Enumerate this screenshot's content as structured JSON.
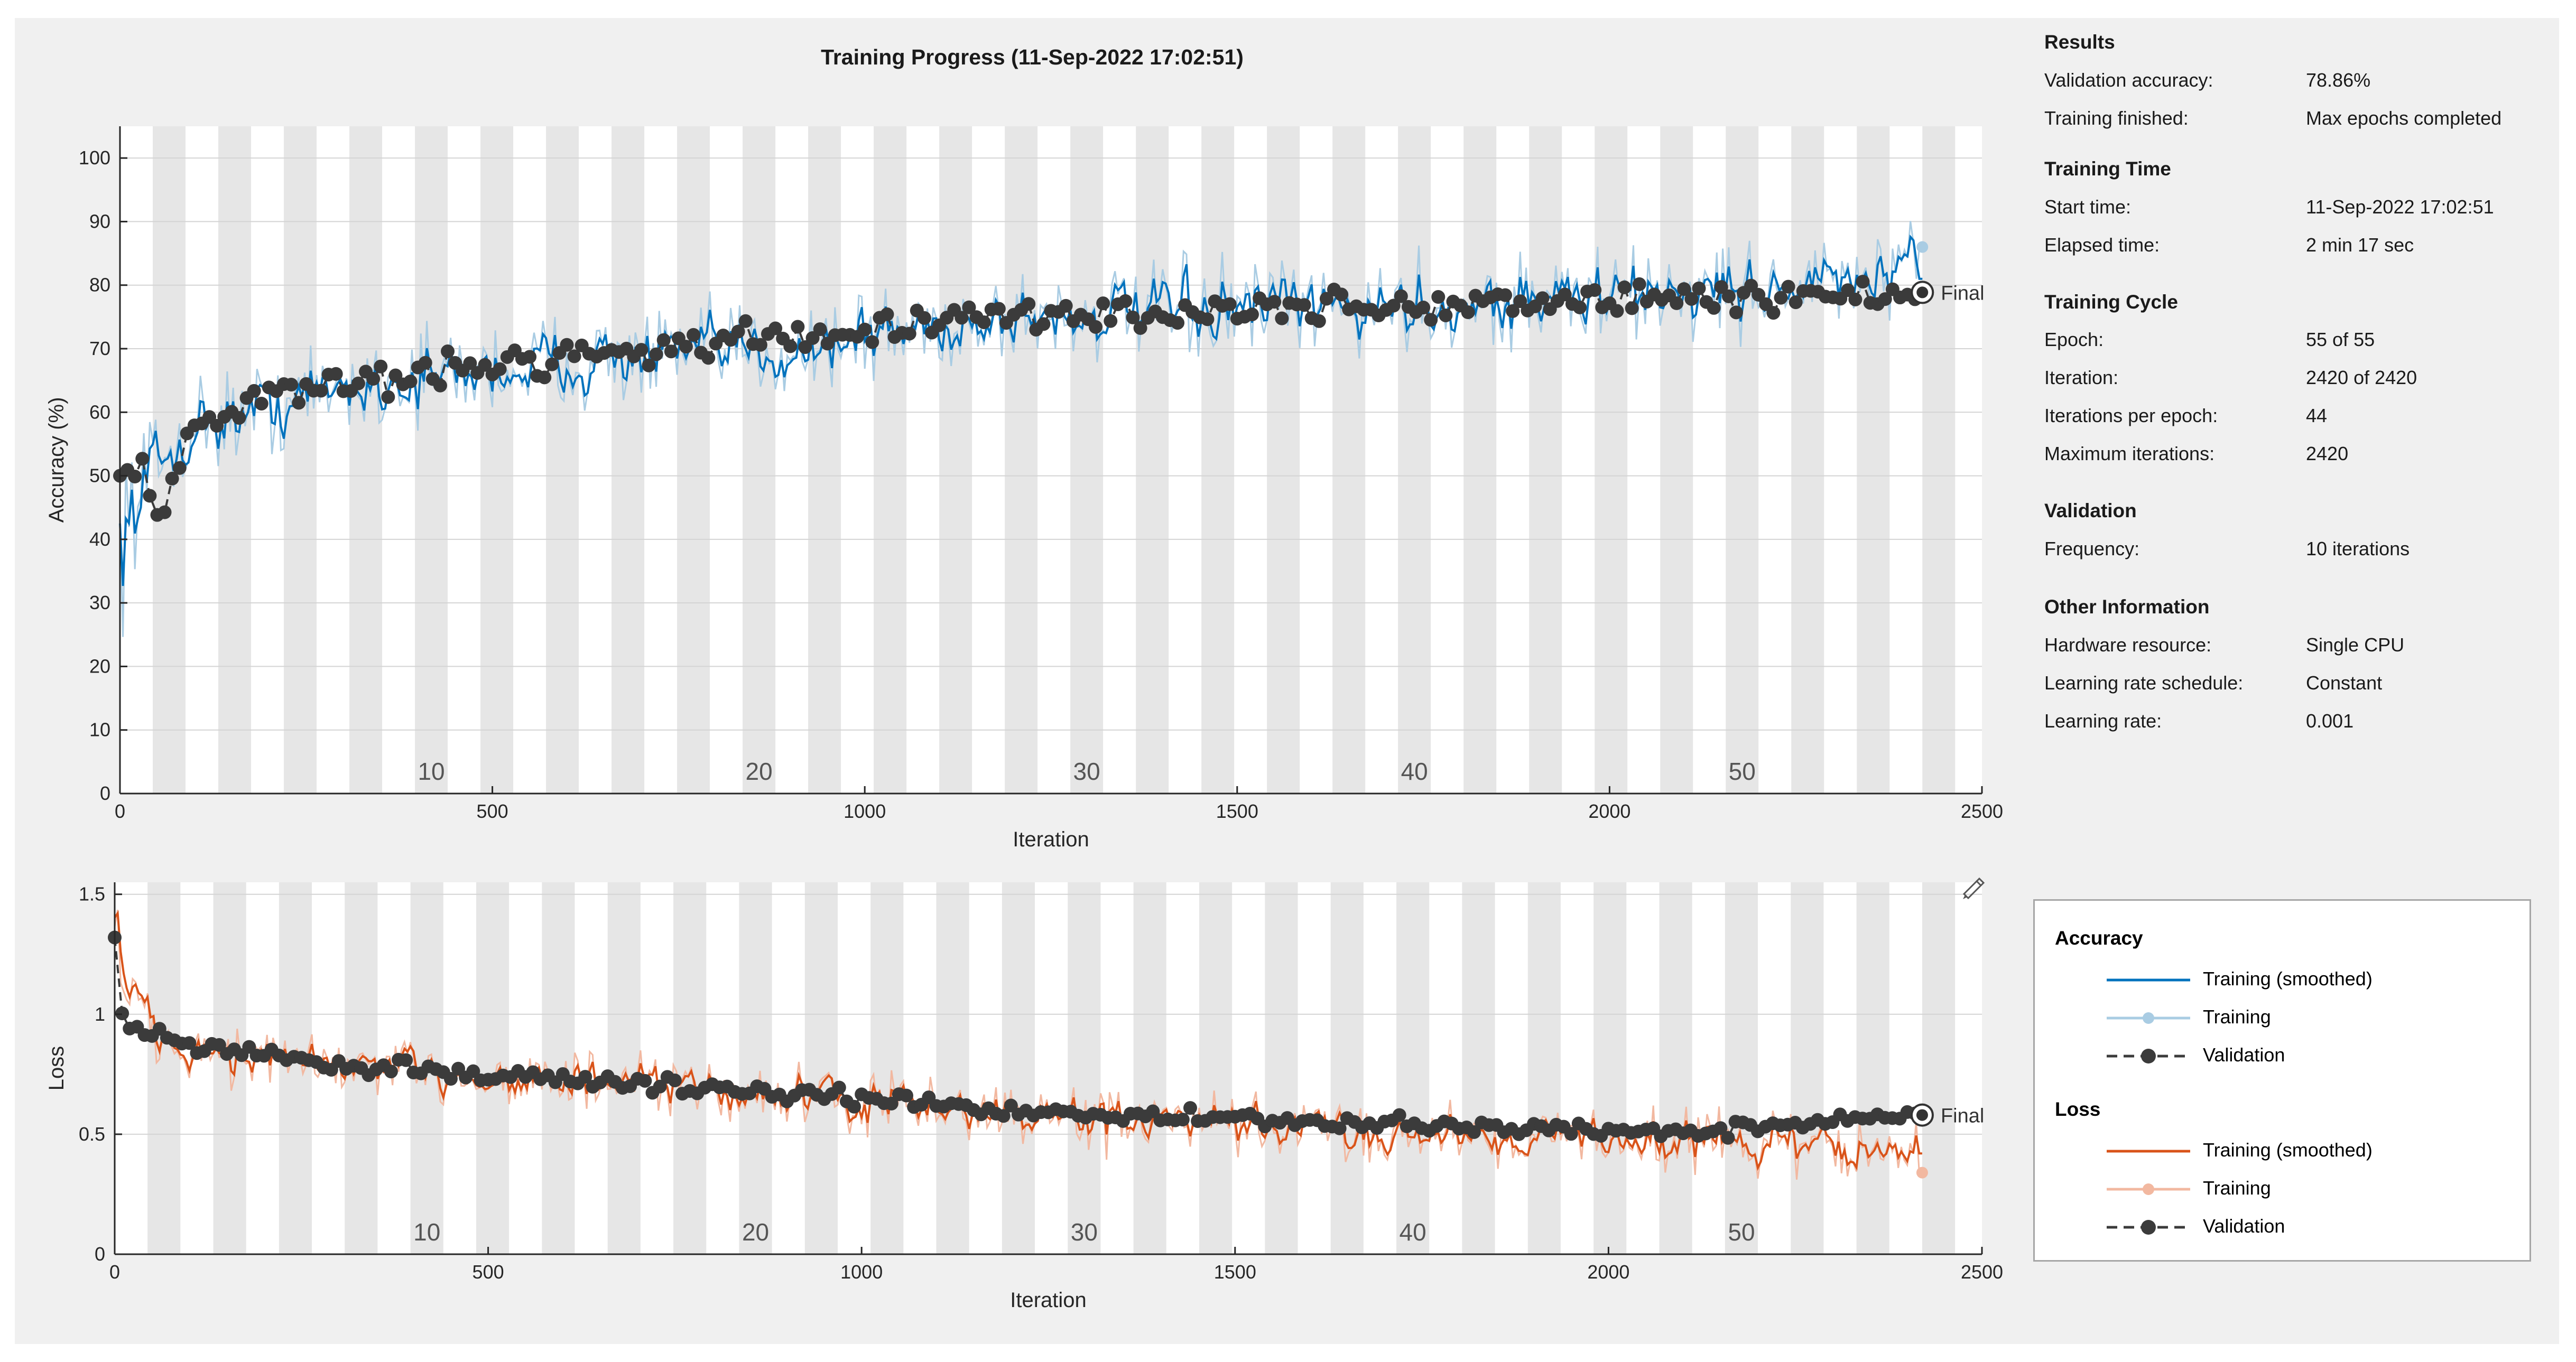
{
  "title": "Training Progress (11-Sep-2022 17:02:51)",
  "colors": {
    "acc_smoothed": "#0072bd",
    "acc_training": "#a9cce3",
    "loss_smoothed": "#d95319",
    "loss_training": "#f2b8a0",
    "validation": "#3b3b3b",
    "epoch_band": "#e6e6e6"
  },
  "chart_data": [
    {
      "type": "line",
      "name": "accuracy",
      "xlabel": "Iteration",
      "ylabel": "Accuracy (%)",
      "xlim": [
        0,
        2500
      ],
      "ylim": [
        0,
        105
      ],
      "xticks": [
        0,
        500,
        1000,
        1500,
        2000,
        2500
      ],
      "yticks": [
        0,
        10,
        20,
        30,
        40,
        50,
        60,
        70,
        80,
        90,
        100
      ],
      "epoch_labels": [
        "10",
        "20",
        "30",
        "40",
        "50"
      ],
      "epoch_label_iterations": [
        418,
        858,
        1298,
        1738,
        2178
      ],
      "iterations_per_epoch": 44,
      "final_label": "Final",
      "final_value": 78.86,
      "series": [
        {
          "name": "Training (smoothed)",
          "anchors_x": [
            0,
            20,
            100,
            300,
            600,
            900,
            1000,
            1200,
            1500,
            1800,
            2100,
            2420
          ],
          "anchors_y": [
            40,
            47,
            58,
            64,
            68,
            70,
            72,
            75,
            76,
            77,
            79,
            81
          ]
        },
        {
          "name": "Training",
          "anchors_x": [
            0,
            20,
            100,
            300,
            600,
            900,
            1000,
            1200,
            1500,
            1800,
            2100,
            2420
          ],
          "anchors_y": [
            40,
            47,
            58,
            64,
            68,
            70,
            72,
            75,
            76,
            77,
            79,
            86
          ]
        },
        {
          "name": "Validation",
          "anchors_x": [
            0,
            10,
            30,
            50,
            100,
            200,
            400,
            600,
            800,
            1000,
            1200,
            1500,
            1800,
            2100,
            2420
          ],
          "anchors_y": [
            50,
            49,
            52,
            44,
            58,
            63,
            66,
            69,
            71,
            73,
            75,
            76,
            77,
            78,
            78.86
          ]
        }
      ]
    },
    {
      "type": "line",
      "name": "loss",
      "xlabel": "Iteration",
      "ylabel": "Loss",
      "xlim": [
        0,
        2500
      ],
      "ylim": [
        0,
        1.55
      ],
      "xticks": [
        0,
        500,
        1000,
        1500,
        2000,
        2500
      ],
      "yticks": [
        0,
        0.5,
        1,
        1.5
      ],
      "ytick_labels": [
        "0",
        "0.5",
        "1",
        "1.5"
      ],
      "epoch_labels": [
        "10",
        "20",
        "30",
        "40",
        "50"
      ],
      "epoch_label_iterations": [
        418,
        858,
        1298,
        1738,
        2178
      ],
      "iterations_per_epoch": 44,
      "final_label": "Final",
      "final_value": 0.58,
      "series": [
        {
          "name": "Training (smoothed)",
          "anchors_x": [
            0,
            10,
            40,
            100,
            300,
            600,
            900,
            1200,
            1500,
            1800,
            2100,
            2420
          ],
          "anchors_y": [
            1.45,
            1.1,
            0.92,
            0.85,
            0.78,
            0.72,
            0.66,
            0.58,
            0.53,
            0.5,
            0.48,
            0.42
          ]
        },
        {
          "name": "Training",
          "anchors_x": [
            0,
            10,
            40,
            100,
            300,
            600,
            900,
            1200,
            1500,
            1800,
            2100,
            2420
          ],
          "anchors_y": [
            1.45,
            1.1,
            0.92,
            0.85,
            0.78,
            0.72,
            0.66,
            0.58,
            0.53,
            0.5,
            0.48,
            0.34
          ]
        },
        {
          "name": "Validation",
          "anchors_x": [
            0,
            5,
            20,
            60,
            100,
            300,
            600,
            900,
            1200,
            1500,
            1800,
            2100,
            2420
          ],
          "anchors_y": [
            1.32,
            1.05,
            0.93,
            0.92,
            0.87,
            0.79,
            0.73,
            0.67,
            0.6,
            0.56,
            0.53,
            0.51,
            0.58
          ]
        }
      ]
    }
  ],
  "info": {
    "results": {
      "title": "Results",
      "rows": [
        {
          "label": "Validation accuracy:",
          "value": "78.86%"
        },
        {
          "label": "Training finished:",
          "value": "Max epochs completed"
        }
      ]
    },
    "training_time": {
      "title": "Training Time",
      "rows": [
        {
          "label": "Start time:",
          "value": "11-Sep-2022 17:02:51"
        },
        {
          "label": "Elapsed time:",
          "value": "2 min 17 sec"
        }
      ]
    },
    "training_cycle": {
      "title": "Training Cycle",
      "rows": [
        {
          "label": "Epoch:",
          "value": "55 of 55"
        },
        {
          "label": "Iteration:",
          "value": "2420 of 2420"
        },
        {
          "label": "Iterations per epoch:",
          "value": "44"
        },
        {
          "label": "Maximum iterations:",
          "value": "2420"
        }
      ]
    },
    "validation": {
      "title": "Validation",
      "rows": [
        {
          "label": "Frequency:",
          "value": "10 iterations"
        }
      ]
    },
    "other": {
      "title": "Other Information",
      "rows": [
        {
          "label": "Hardware resource:",
          "value": "Single CPU"
        },
        {
          "label": "Learning rate schedule:",
          "value": "Constant"
        },
        {
          "label": "Learning rate:",
          "value": "0.001"
        }
      ]
    }
  },
  "legend": {
    "accuracy_title": "Accuracy",
    "accuracy_items": [
      "Training (smoothed)",
      "Training",
      "Validation"
    ],
    "loss_title": "Loss",
    "loss_items": [
      "Training (smoothed)",
      "Training",
      "Validation"
    ]
  },
  "icons": {
    "toolbar": "brush-pen-icon"
  }
}
